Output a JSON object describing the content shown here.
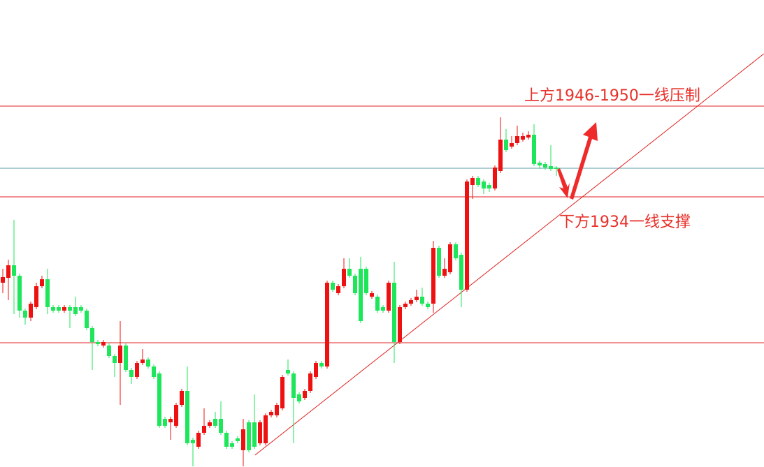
{
  "chart_data": {
    "type": "candlestick",
    "annotations": [
      {
        "text": "上方1946-1950一线压制"
      },
      {
        "text": "下方1934一线支撑"
      }
    ],
    "ylim": [
      1895.3,
      1962.2
    ],
    "up_color": "#ee1111",
    "down_color": "#1ee65a",
    "open": [
      1921.7,
      1922.4,
      1924.2,
      1922.7,
      1917.7,
      1916.7,
      1918.2,
      1921.2,
      1922.2,
      1918.2,
      1918.2,
      1917.7,
      1918.2,
      1918.2,
      1918.2,
      1917.7,
      1915.2,
      1913.2,
      1912.7,
      1912.7,
      1911.2,
      1910.2,
      1912.7,
      1909.2,
      1908.2,
      1910.2,
      1910.7,
      1909.7,
      1908.7,
      1902.2,
      1901.7,
      1901.2,
      1904.2,
      1906.2,
      1899.2,
      1898.2,
      1900.2,
      1901.2,
      1902.2,
      1902.2,
      1900.2,
      1898.7,
      1899.4,
      1897.7,
      1901.7,
      1901.7,
      1898.7,
      1898.7,
      1902.7,
      1902.7,
      1903.7,
      1909.2,
      1908.7,
      1905.7,
      1905.2,
      1906.2,
      1908.2,
      1910.2,
      1909.7,
      1921.7,
      1920.2,
      1921.2,
      1923.7,
      1922.7,
      1923.7,
      1923.7,
      1919.7,
      1919.7,
      1918.2,
      1917.7,
      1921.7,
      1913.2,
      1918.2,
      1918.7,
      1919.2,
      1919.7,
      1918.7,
      1918.7,
      1926.7,
      1922.7,
      1923.2,
      1927.2,
      1925.7,
      1920.7,
      1935.7,
      1936.7,
      1936.2,
      1935.7,
      1935.2,
      1937.7,
      1942.2,
      1941.2,
      1941.7,
      1942.2,
      1942.5,
      1942.9,
      1938.9,
      1938.7,
      1938.4,
      1938.2
    ],
    "close": [
      1922.5,
      1924.2,
      1922.7,
      1917.7,
      1916.7,
      1918.7,
      1921.2,
      1922.2,
      1918.2,
      1917.7,
      1917.7,
      1918.2,
      1917.7,
      1917.2,
      1917.7,
      1915.2,
      1913.2,
      1912.9,
      1913.2,
      1911.2,
      1910.2,
      1912.7,
      1909.2,
      1908.2,
      1910.2,
      1910.7,
      1909.7,
      1908.2,
      1901.2,
      1901.2,
      1902.2,
      1904.2,
      1906.2,
      1898.7,
      1898.7,
      1900.2,
      1901.2,
      1901.7,
      1901.2,
      1900.2,
      1898.2,
      1898.2,
      1899.0,
      1900.7,
      1897.7,
      1898.2,
      1901.7,
      1902.7,
      1903.2,
      1904.2,
      1908.2,
      1908.7,
      1905.2,
      1904.7,
      1906.2,
      1908.7,
      1910.2,
      1909.7,
      1921.7,
      1920.7,
      1921.2,
      1923.7,
      1922.7,
      1920.2,
      1916.2,
      1920.2,
      1920.2,
      1917.7,
      1917.7,
      1921.7,
      1913.2,
      1918.2,
      1918.7,
      1919.2,
      1919.7,
      1918.7,
      1918.2,
      1926.7,
      1922.7,
      1923.7,
      1927.2,
      1925.2,
      1920.7,
      1936.2,
      1936.7,
      1935.7,
      1935.2,
      1935.2,
      1938.2,
      1942.2,
      1940.7,
      1941.7,
      1942.7,
      1942.7,
      1942.9,
      1938.7,
      1938.5,
      1938.2,
      1938.0,
      1938.0
    ],
    "high": [
      1923.7,
      1925.0,
      1930.7,
      1923.0,
      1918.0,
      1919.0,
      1921.7,
      1922.7,
      1923.7,
      1918.5,
      1918.5,
      1918.5,
      1918.5,
      1919.7,
      1918.5,
      1918.0,
      1915.5,
      1913.5,
      1913.5,
      1913.0,
      1911.5,
      1916.2,
      1913.0,
      1909.5,
      1910.5,
      1912.2,
      1911.0,
      1910.0,
      1909.0,
      1902.5,
      1902.5,
      1904.5,
      1906.5,
      1909.7,
      1899.5,
      1900.5,
      1903.7,
      1902.0,
      1903.2,
      1904.7,
      1900.5,
      1899.0,
      1899.7,
      1902.2,
      1902.0,
      1905.7,
      1902.0,
      1903.0,
      1903.5,
      1904.5,
      1908.5,
      1910.7,
      1909.0,
      1906.0,
      1906.5,
      1909.0,
      1910.5,
      1910.5,
      1922.0,
      1922.0,
      1921.5,
      1925.2,
      1925.2,
      1923.0,
      1925.4,
      1924.0,
      1920.5,
      1920.0,
      1918.5,
      1922.0,
      1924.7,
      1918.5,
      1919.0,
      1919.5,
      1920.7,
      1921.0,
      1919.0,
      1927.7,
      1927.0,
      1925.2,
      1927.5,
      1927.5,
      1926.0,
      1936.5,
      1937.0,
      1937.0,
      1936.5,
      1936.0,
      1938.5,
      1945.4,
      1943.7,
      1942.7,
      1944.2,
      1943.2,
      1943.4,
      1944.4,
      1939.2,
      1939.0,
      1941.4,
      1938.4
    ],
    "low": [
      1920.2,
      1919.2,
      1917.2,
      1916.7,
      1915.7,
      1916.2,
      1917.9,
      1920.9,
      1917.2,
      1917.4,
      1917.4,
      1917.4,
      1915.2,
      1916.9,
      1917.4,
      1914.9,
      1909.2,
      1912.6,
      1912.4,
      1910.9,
      1908.2,
      1904.2,
      1908.9,
      1907.2,
      1907.9,
      1909.9,
      1909.4,
      1907.9,
      1900.9,
      1900.9,
      1899.2,
      1900.9,
      1903.9,
      1898.4,
      1895.4,
      1897.9,
      1899.9,
      1900.9,
      1900.9,
      1899.9,
      1897.9,
      1897.9,
      1898.7,
      1895.4,
      1897.4,
      1897.9,
      1898.4,
      1898.4,
      1902.4,
      1902.4,
      1903.4,
      1908.4,
      1898.7,
      1904.4,
      1904.9,
      1905.9,
      1907.9,
      1909.4,
      1909.4,
      1920.4,
      1919.9,
      1920.9,
      1922.4,
      1919.9,
      1915.9,
      1919.9,
      1919.4,
      1917.4,
      1917.4,
      1917.4,
      1910.2,
      1912.9,
      1917.9,
      1918.4,
      1918.9,
      1918.4,
      1917.9,
      1917.4,
      1922.4,
      1922.4,
      1922.9,
      1924.9,
      1918.2,
      1920.4,
      1933.7,
      1935.4,
      1934.4,
      1934.7,
      1934.9,
      1937.4,
      1940.4,
      1940.9,
      1941.4,
      1941.9,
      1942.2,
      1938.4,
      1938.0,
      1937.9,
      1937.7,
      1937.0
    ],
    "hlines": [
      {
        "value": 1947,
        "color": "#e02020"
      },
      {
        "value": 1938.1,
        "color": "#5f9ea8"
      },
      {
        "value": 1934,
        "color": "#e02020"
      },
      {
        "value": 1913.1,
        "color": "#e02020"
      }
    ],
    "trendline": {
      "x": [
        45.1,
        136.1
      ],
      "y": [
        1897.0,
        1954.5
      ],
      "color": "#e02020"
    }
  }
}
